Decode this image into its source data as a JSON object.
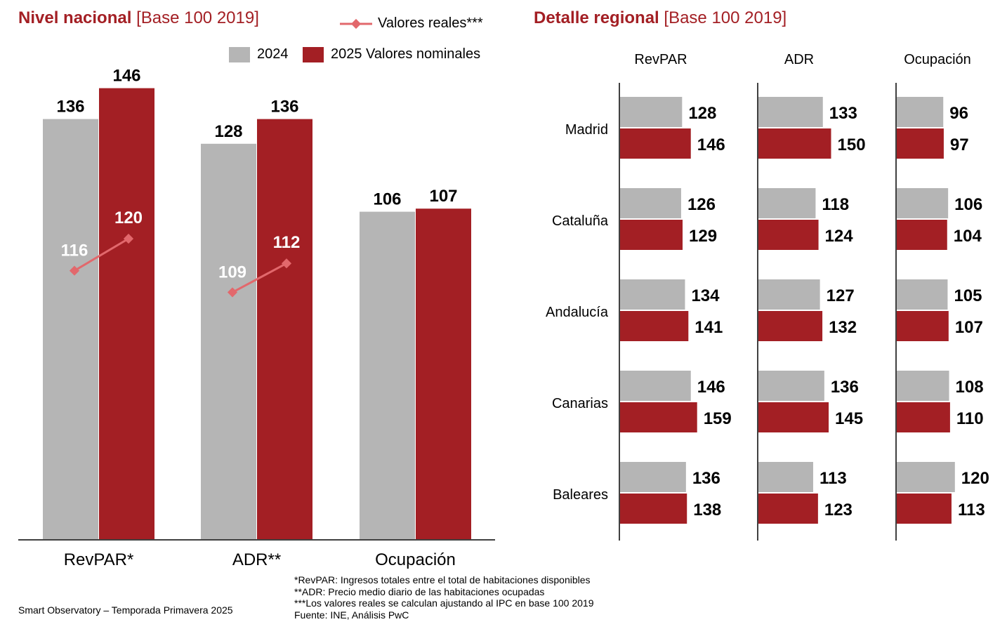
{
  "national": {
    "title": "Nivel nacional",
    "subtitle": "[Base 100 2019]"
  },
  "regional": {
    "title": "Detalle regional",
    "subtitle": "[Base 100 2019]"
  },
  "legend": {
    "real_values": "Valores reales***",
    "series_2024": "2024",
    "series_2025": "2025 Valores nominales"
  },
  "colors": {
    "accent": "#a31f24",
    "grey": "#b5b5b5",
    "line": "#e2686c",
    "bar_2025": "#a31f24"
  },
  "chart_data": [
    {
      "type": "bar",
      "categories": [
        "RevPAR*",
        "ADR**",
        "Ocupación"
      ],
      "series": [
        {
          "name": "2024",
          "values": [
            136,
            128,
            106
          ]
        },
        {
          "name": "2025 Valores nominales",
          "values": [
            146,
            136,
            107
          ]
        }
      ],
      "real_values": {
        "name": "Valores reales***",
        "pairs": [
          [
            116,
            120
          ],
          [
            109,
            112
          ]
        ]
      },
      "ylim": [
        0,
        160
      ],
      "grid": false,
      "legend": "top-right"
    },
    {
      "type": "bar",
      "orientation": "horizontal",
      "panels": [
        "RevPAR",
        "ADR",
        "Ocupación"
      ],
      "regions": [
        "Madrid",
        "Cataluña",
        "Andalucía",
        "Canarias",
        "Baleares"
      ],
      "series": [
        {
          "name": "2024",
          "values": {
            "RevPAR": [
              128,
              126,
              134,
              146,
              136
            ],
            "ADR": [
              133,
              118,
              127,
              136,
              113
            ],
            "Ocupación": [
              96,
              106,
              105,
              108,
              120
            ]
          }
        },
        {
          "name": "2025 Valores nominales",
          "values": {
            "RevPAR": [
              146,
              129,
              141,
              159,
              138
            ],
            "ADR": [
              150,
              124,
              132,
              145,
              123
            ],
            "Ocupación": [
              97,
              104,
              107,
              110,
              113
            ]
          }
        }
      ],
      "grid": false
    }
  ],
  "footnotes": [
    "*RevPAR: Ingresos totales entre el total de habitaciones disponibles",
    "**ADR: Precio medio diario de las habitaciones ocupadas",
    "***Los valores reales se calculan ajustando al IPC en base 100 2019",
    "Fuente: INE, Análisis PwC"
  ],
  "source": "Smart Observatory – Temporada Primavera 2025"
}
